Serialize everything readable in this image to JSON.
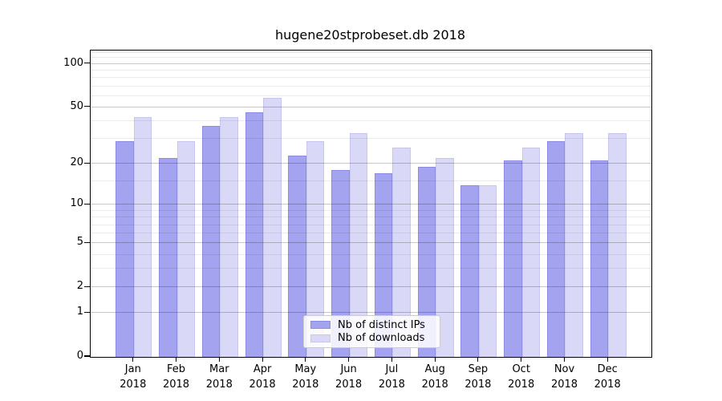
{
  "title": "hugene20stprobeset.db 2018",
  "chart_data": {
    "type": "bar",
    "title": "hugene20stprobeset.db 2018",
    "categories": [
      "Jan",
      "Feb",
      "Mar",
      "Apr",
      "May",
      "Jun",
      "Jul",
      "Aug",
      "Sep",
      "Oct",
      "Nov",
      "Dec"
    ],
    "x_label_year": "2018",
    "series": [
      {
        "name": "Nb of distinct IPs",
        "color": "#a3a3f0",
        "values": [
          29,
          22,
          37,
          46,
          23,
          18,
          17,
          19,
          14,
          21,
          29,
          21
        ]
      },
      {
        "name": "Nb of downloads",
        "color": "#d9d9f7",
        "values": [
          43,
          29,
          43,
          58,
          29,
          33,
          26,
          22,
          14,
          26,
          33,
          33
        ]
      }
    ],
    "xlabel": "",
    "ylabel": "",
    "yscale": "log1p",
    "ylim": [
      0,
      124
    ],
    "y_major_ticks": [
      100,
      50,
      20,
      10,
      5,
      2,
      1,
      0
    ],
    "y_minor_gridlines": [
      3,
      4,
      6,
      7,
      8,
      9,
      15,
      30,
      40,
      60,
      70,
      80,
      90,
      110,
      120
    ],
    "grid": "on",
    "legend_position": "lower-center"
  },
  "legend": {
    "items": [
      {
        "label": "Nb of distinct IPs"
      },
      {
        "label": "Nb of downloads"
      }
    ]
  },
  "colors": {
    "ips_bar": "#a3a3f0",
    "downloads_bar": "#d9d9f7",
    "axis": "#000000",
    "background": "#ffffff"
  }
}
